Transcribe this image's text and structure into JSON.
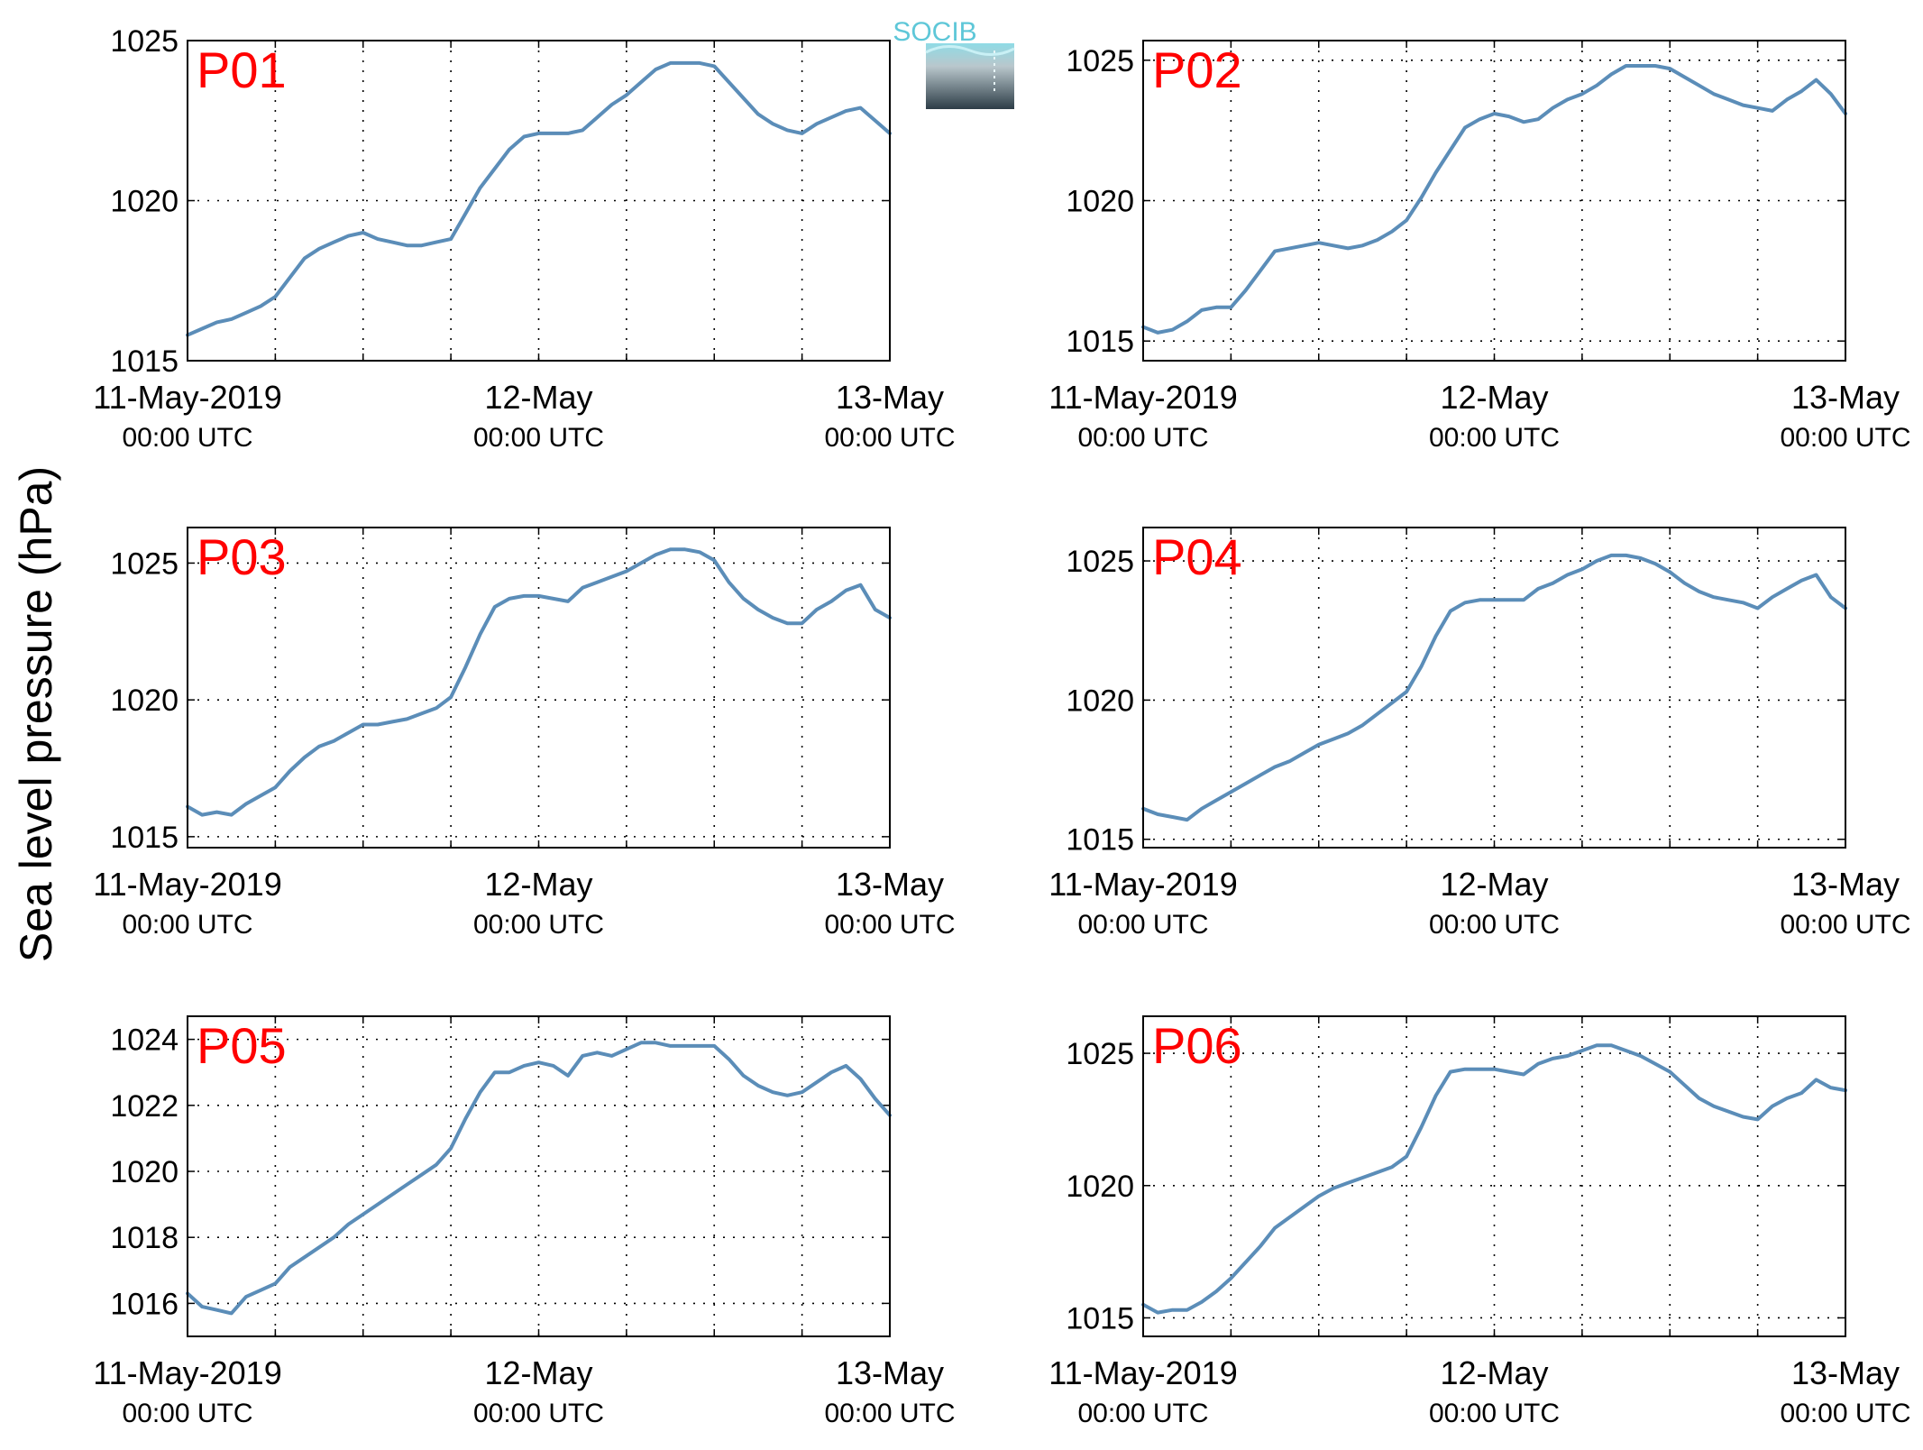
{
  "ylabel": "Sea level pressure (hPa)",
  "logo": {
    "text": "SOCIB"
  },
  "colors": {
    "line": "#5b8db8",
    "panel_label": "#ff0000",
    "axis": "#000000",
    "grid": "#000000"
  },
  "x_ticks": [
    {
      "date": "11-May-2019",
      "time": "00:00 UTC"
    },
    {
      "date": "12-May",
      "time": "00:00 UTC"
    },
    {
      "date": "13-May",
      "time": "00:00 UTC"
    }
  ],
  "chart_data": [
    {
      "type": "line",
      "panel": "P01",
      "xlim": [
        "2019-05-11 00:00",
        "2019-05-13 00:00"
      ],
      "x_units": "hours since 2019-05-11 00:00 UTC",
      "ylim": [
        1015,
        1025
      ],
      "yticks": [
        1015,
        1020,
        1025
      ],
      "grid": true,
      "x": [
        0,
        1,
        2,
        3,
        4,
        5,
        6,
        7,
        8,
        9,
        10,
        11,
        12,
        13,
        14,
        15,
        16,
        17,
        18,
        19,
        20,
        21,
        22,
        23,
        24,
        25,
        26,
        27,
        28,
        29,
        30,
        31,
        32,
        33,
        34,
        35,
        36,
        37,
        38,
        39,
        40,
        41,
        42,
        43,
        44,
        45,
        46,
        47,
        48
      ],
      "series": [
        {
          "values": [
            1015.8,
            1016.0,
            1016.2,
            1016.3,
            1016.5,
            1016.7,
            1017.0,
            1017.6,
            1018.2,
            1018.5,
            1018.7,
            1018.9,
            1019.0,
            1018.8,
            1018.7,
            1018.6,
            1018.6,
            1018.7,
            1018.8,
            1019.6,
            1020.4,
            1021.0,
            1021.6,
            1022.0,
            1022.1,
            1022.1,
            1022.1,
            1022.2,
            1022.6,
            1023.0,
            1023.3,
            1023.7,
            1024.1,
            1024.3,
            1024.3,
            1024.3,
            1024.2,
            1023.7,
            1023.2,
            1022.7,
            1022.4,
            1022.2,
            1022.1,
            1022.4,
            1022.6,
            1022.8,
            1022.9,
            1022.5,
            1022.1
          ]
        }
      ]
    },
    {
      "type": "line",
      "panel": "P02",
      "xlim": [
        "2019-05-11 00:00",
        "2019-05-13 00:00"
      ],
      "x_units": "hours since 2019-05-11 00:00 UTC",
      "ylim": [
        1014.3,
        1025.7
      ],
      "yticks": [
        1015,
        1020,
        1025
      ],
      "grid": true,
      "x": [
        0,
        1,
        2,
        3,
        4,
        5,
        6,
        7,
        8,
        9,
        10,
        11,
        12,
        13,
        14,
        15,
        16,
        17,
        18,
        19,
        20,
        21,
        22,
        23,
        24,
        25,
        26,
        27,
        28,
        29,
        30,
        31,
        32,
        33,
        34,
        35,
        36,
        37,
        38,
        39,
        40,
        41,
        42,
        43,
        44,
        45,
        46,
        47,
        48
      ],
      "series": [
        {
          "values": [
            1015.5,
            1015.3,
            1015.4,
            1015.7,
            1016.1,
            1016.2,
            1016.2,
            1016.8,
            1017.5,
            1018.2,
            1018.3,
            1018.4,
            1018.5,
            1018.4,
            1018.3,
            1018.4,
            1018.6,
            1018.9,
            1019.3,
            1020.1,
            1021.0,
            1021.8,
            1022.6,
            1022.9,
            1023.1,
            1023.0,
            1022.8,
            1022.9,
            1023.3,
            1023.6,
            1023.8,
            1024.1,
            1024.5,
            1024.8,
            1024.8,
            1024.8,
            1024.7,
            1024.4,
            1024.1,
            1023.8,
            1023.6,
            1023.4,
            1023.3,
            1023.2,
            1023.6,
            1023.9,
            1024.3,
            1023.8,
            1023.1
          ]
        }
      ]
    },
    {
      "type": "line",
      "panel": "P03",
      "xlim": [
        "2019-05-11 00:00",
        "2019-05-13 00:00"
      ],
      "x_units": "hours since 2019-05-11 00:00 UTC",
      "ylim": [
        1014.6,
        1026.3
      ],
      "yticks": [
        1015,
        1020,
        1025
      ],
      "grid": true,
      "x": [
        0,
        1,
        2,
        3,
        4,
        5,
        6,
        7,
        8,
        9,
        10,
        11,
        12,
        13,
        14,
        15,
        16,
        17,
        18,
        19,
        20,
        21,
        22,
        23,
        24,
        25,
        26,
        27,
        28,
        29,
        30,
        31,
        32,
        33,
        34,
        35,
        36,
        37,
        38,
        39,
        40,
        41,
        42,
        43,
        44,
        45,
        46,
        47,
        48
      ],
      "series": [
        {
          "values": [
            1016.1,
            1015.8,
            1015.9,
            1015.8,
            1016.2,
            1016.5,
            1016.8,
            1017.4,
            1017.9,
            1018.3,
            1018.5,
            1018.8,
            1019.1,
            1019.1,
            1019.2,
            1019.3,
            1019.5,
            1019.7,
            1020.1,
            1021.2,
            1022.4,
            1023.4,
            1023.7,
            1023.8,
            1023.8,
            1023.7,
            1023.6,
            1024.1,
            1024.3,
            1024.5,
            1024.7,
            1025.0,
            1025.3,
            1025.5,
            1025.5,
            1025.4,
            1025.1,
            1024.3,
            1023.7,
            1023.3,
            1023.0,
            1022.8,
            1022.8,
            1023.3,
            1023.6,
            1024.0,
            1024.2,
            1023.3,
            1023.0
          ]
        }
      ]
    },
    {
      "type": "line",
      "panel": "P04",
      "xlim": [
        "2019-05-11 00:00",
        "2019-05-13 00:00"
      ],
      "x_units": "hours since 2019-05-11 00:00 UTC",
      "ylim": [
        1014.7,
        1026.2
      ],
      "yticks": [
        1015,
        1020,
        1025
      ],
      "grid": true,
      "x": [
        0,
        1,
        2,
        3,
        4,
        5,
        6,
        7,
        8,
        9,
        10,
        11,
        12,
        13,
        14,
        15,
        16,
        17,
        18,
        19,
        20,
        21,
        22,
        23,
        24,
        25,
        26,
        27,
        28,
        29,
        30,
        31,
        32,
        33,
        34,
        35,
        36,
        37,
        38,
        39,
        40,
        41,
        42,
        43,
        44,
        45,
        46,
        47,
        48
      ],
      "series": [
        {
          "values": [
            1016.1,
            1015.9,
            1015.8,
            1015.7,
            1016.1,
            1016.4,
            1016.7,
            1017.0,
            1017.3,
            1017.6,
            1017.8,
            1018.1,
            1018.4,
            1018.6,
            1018.8,
            1019.1,
            1019.5,
            1019.9,
            1020.3,
            1021.2,
            1022.3,
            1023.2,
            1023.5,
            1023.6,
            1023.6,
            1023.6,
            1023.6,
            1024.0,
            1024.2,
            1024.5,
            1024.7,
            1025.0,
            1025.2,
            1025.2,
            1025.1,
            1024.9,
            1024.6,
            1024.2,
            1023.9,
            1023.7,
            1023.6,
            1023.5,
            1023.3,
            1023.7,
            1024.0,
            1024.3,
            1024.5,
            1023.7,
            1023.3
          ]
        }
      ]
    },
    {
      "type": "line",
      "panel": "P05",
      "xlim": [
        "2019-05-11 00:00",
        "2019-05-13 00:00"
      ],
      "x_units": "hours since 2019-05-11 00:00 UTC",
      "ylim": [
        1015,
        1024.7
      ],
      "yticks": [
        1016,
        1018,
        1020,
        1022,
        1024
      ],
      "grid": true,
      "x": [
        0,
        1,
        2,
        3,
        4,
        5,
        6,
        7,
        8,
        9,
        10,
        11,
        12,
        13,
        14,
        15,
        16,
        17,
        18,
        19,
        20,
        21,
        22,
        23,
        24,
        25,
        26,
        27,
        28,
        29,
        30,
        31,
        32,
        33,
        34,
        35,
        36,
        37,
        38,
        39,
        40,
        41,
        42,
        43,
        44,
        45,
        46,
        47,
        48
      ],
      "series": [
        {
          "values": [
            1016.3,
            1015.9,
            1015.8,
            1015.7,
            1016.2,
            1016.4,
            1016.6,
            1017.1,
            1017.4,
            1017.7,
            1018.0,
            1018.4,
            1018.7,
            1019.0,
            1019.3,
            1019.6,
            1019.9,
            1020.2,
            1020.7,
            1021.6,
            1022.4,
            1023.0,
            1023.0,
            1023.2,
            1023.3,
            1023.2,
            1022.9,
            1023.5,
            1023.6,
            1023.5,
            1023.7,
            1023.9,
            1023.9,
            1023.8,
            1023.8,
            1023.8,
            1023.8,
            1023.4,
            1022.9,
            1022.6,
            1022.4,
            1022.3,
            1022.4,
            1022.7,
            1023.0,
            1023.2,
            1022.8,
            1022.2,
            1021.7
          ]
        }
      ]
    },
    {
      "type": "line",
      "panel": "P06",
      "xlim": [
        "2019-05-11 00:00",
        "2019-05-13 00:00"
      ],
      "x_units": "hours since 2019-05-11 00:00 UTC",
      "ylim": [
        1014.3,
        1026.4
      ],
      "yticks": [
        1015,
        1020,
        1025
      ],
      "grid": true,
      "x": [
        0,
        1,
        2,
        3,
        4,
        5,
        6,
        7,
        8,
        9,
        10,
        11,
        12,
        13,
        14,
        15,
        16,
        17,
        18,
        19,
        20,
        21,
        22,
        23,
        24,
        25,
        26,
        27,
        28,
        29,
        30,
        31,
        32,
        33,
        34,
        35,
        36,
        37,
        38,
        39,
        40,
        41,
        42,
        43,
        44,
        45,
        46,
        47,
        48
      ],
      "series": [
        {
          "values": [
            1015.5,
            1015.2,
            1015.3,
            1015.3,
            1015.6,
            1016.0,
            1016.5,
            1017.1,
            1017.7,
            1018.4,
            1018.8,
            1019.2,
            1019.6,
            1019.9,
            1020.1,
            1020.3,
            1020.5,
            1020.7,
            1021.1,
            1022.2,
            1023.4,
            1024.3,
            1024.4,
            1024.4,
            1024.4,
            1024.3,
            1024.2,
            1024.6,
            1024.8,
            1024.9,
            1025.1,
            1025.3,
            1025.3,
            1025.1,
            1024.9,
            1024.6,
            1024.3,
            1023.8,
            1023.3,
            1023.0,
            1022.8,
            1022.6,
            1022.5,
            1023.0,
            1023.3,
            1023.5,
            1024.0,
            1023.7,
            1023.6
          ]
        }
      ]
    }
  ]
}
